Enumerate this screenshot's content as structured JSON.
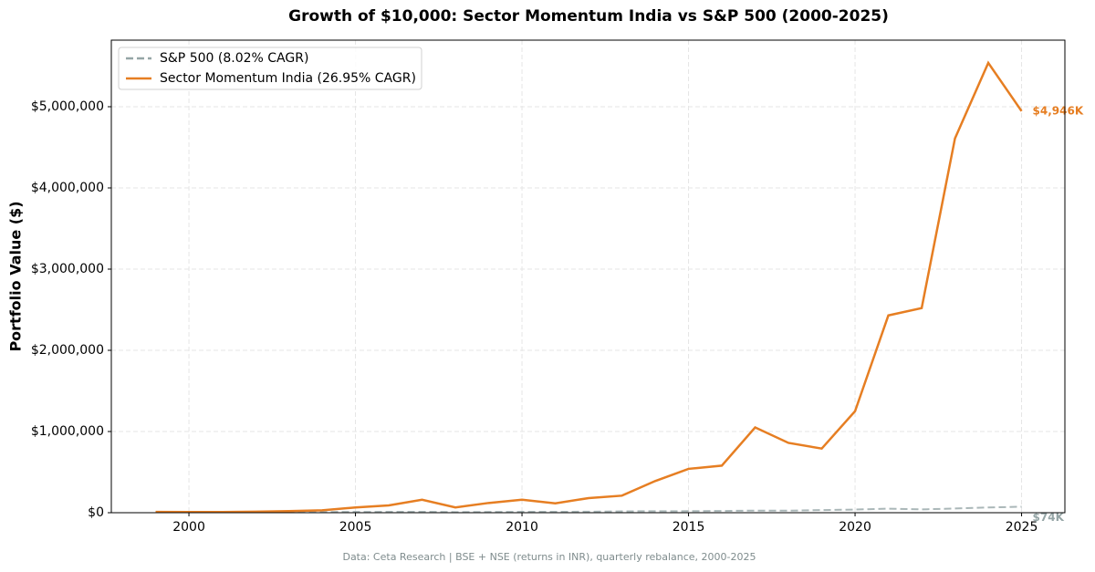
{
  "chart_data": {
    "type": "line",
    "title": "Growth of $10,000: Sector Momentum India vs S&P 500 (2000-2025)",
    "ylabel": "Portfolio Value ($)",
    "footnote": "Data: Ceta Research | BSE + NSE (returns in INR), quarterly rebalance, 2000-2025",
    "x": [
      1999,
      2000,
      2001,
      2002,
      2003,
      2004,
      2005,
      2006,
      2007,
      2008,
      2009,
      2010,
      2011,
      2012,
      2013,
      2014,
      2015,
      2016,
      2017,
      2018,
      2019,
      2020,
      2021,
      2022,
      2023,
      2024,
      2025
    ],
    "series": [
      {
        "name": "S&P 500 (8.02% CAGR)",
        "color": "#95a5a6",
        "dash": true,
        "values": [
          10000,
          9000,
          8000,
          6500,
          8000,
          9000,
          9400,
          11000,
          11500,
          7300,
          9200,
          10600,
          10800,
          12500,
          16500,
          18800,
          19000,
          21300,
          26000,
          24800,
          32600,
          38600,
          49700,
          40700,
          51400,
          64300,
          74000
        ],
        "value_labels": [
          null,
          null,
          null,
          null,
          null,
          null,
          null,
          null,
          null,
          null,
          null,
          null,
          null,
          null,
          null,
          null,
          null,
          null,
          null,
          null,
          null,
          null,
          null,
          null,
          null,
          null,
          "$74K"
        ]
      },
      {
        "name": "Sector Momentum India (26.95% CAGR)",
        "color": "#e67e22",
        "dash": false,
        "values": [
          10000,
          8000,
          9000,
          12000,
          20000,
          30000,
          65000,
          90000,
          160000,
          65000,
          120000,
          160000,
          115000,
          180000,
          210000,
          390000,
          540000,
          580000,
          1050000,
          860000,
          790000,
          1250000,
          2430000,
          2520000,
          4610000,
          5540000,
          4946000
        ],
        "value_labels": [
          null,
          null,
          null,
          null,
          null,
          null,
          null,
          null,
          null,
          null,
          null,
          null,
          null,
          null,
          null,
          null,
          null,
          null,
          null,
          null,
          null,
          null,
          null,
          null,
          null,
          null,
          "$4,946K"
        ]
      }
    ],
    "xlim": [
      1997.67,
      2026.3
    ],
    "xticks": [
      2000,
      2005,
      2010,
      2015,
      2020,
      2025
    ],
    "ylim": [
      0,
      5820000
    ],
    "yticks": [
      {
        "value": 0,
        "label": "$0"
      },
      {
        "value": 1000000,
        "label": "$1,000,000"
      },
      {
        "value": 2000000,
        "label": "$2,000,000"
      },
      {
        "value": 3000000,
        "label": "$3,000,000"
      },
      {
        "value": 4000000,
        "label": "$4,000,000"
      },
      {
        "value": 5000000,
        "label": "$5,000,000"
      }
    ],
    "grid": true,
    "legend": "upper-left"
  }
}
